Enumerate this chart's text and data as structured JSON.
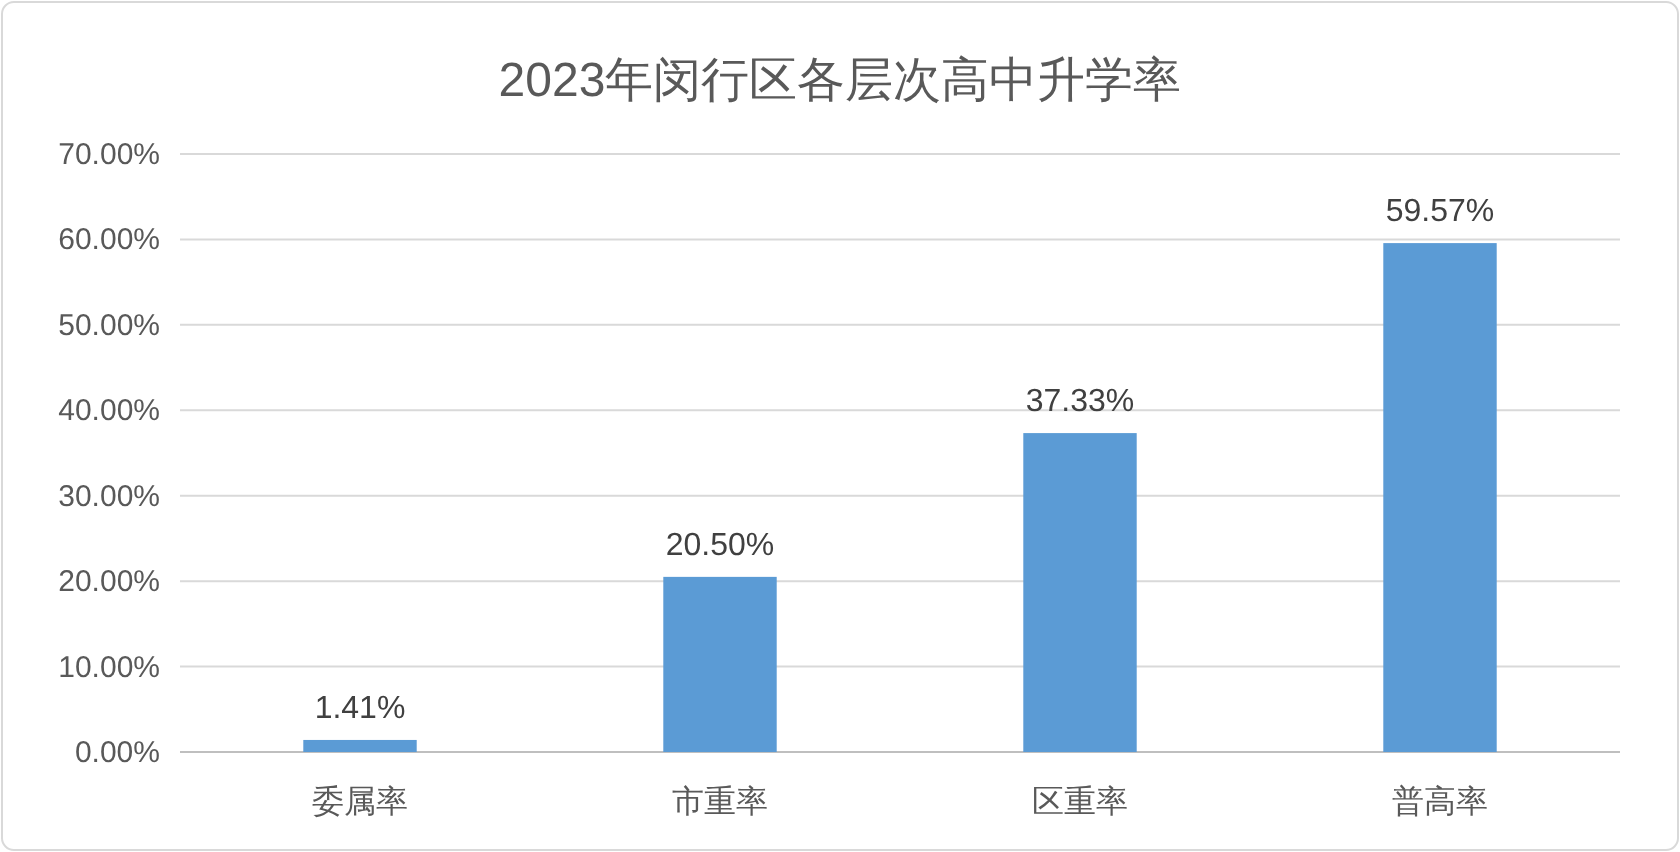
{
  "chart_data": {
    "type": "bar",
    "title": "2023年闵行区各层次高中升学率",
    "categories": [
      "委属率",
      "市重率",
      "区重率",
      "普高率"
    ],
    "values": [
      1.41,
      20.5,
      37.33,
      59.57
    ],
    "value_labels": [
      "1.41%",
      "20.50%",
      "37.33%",
      "59.57%"
    ],
    "color": "#5b9bd5",
    "ylim": [
      0,
      70
    ],
    "yticks": [
      {
        "value": 0,
        "label": "0.00%"
      },
      {
        "value": 10,
        "label": "10.00%"
      },
      {
        "value": 20,
        "label": "20.00%"
      },
      {
        "value": 30,
        "label": "30.00%"
      },
      {
        "value": 40,
        "label": "40.00%"
      },
      {
        "value": 50,
        "label": "50.00%"
      },
      {
        "value": 60,
        "label": "60.00%"
      },
      {
        "value": 70,
        "label": "70.00%"
      }
    ],
    "grid": "y"
  }
}
